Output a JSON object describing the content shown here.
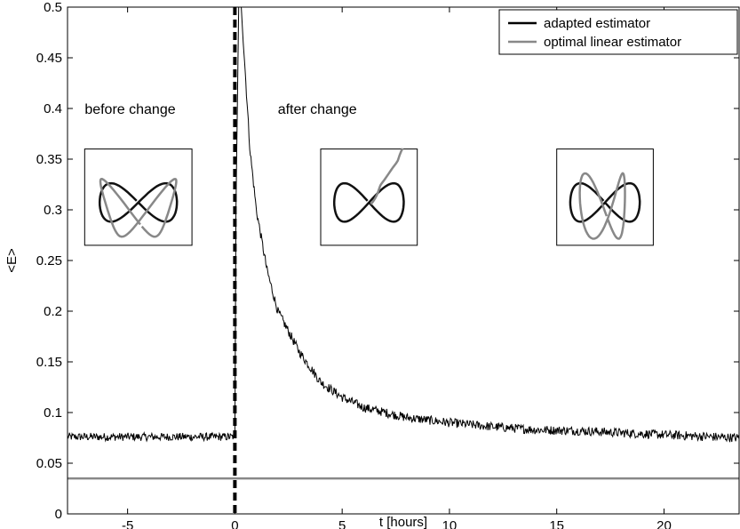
{
  "chart_data": {
    "type": "line",
    "title": "",
    "xlabel": "t [hours]",
    "ylabel": "<E>",
    "xlim": [
      -7.8,
      23.5
    ],
    "ylim": [
      0,
      0.5
    ],
    "xticks": [
      -5,
      0,
      5,
      10,
      15,
      20
    ],
    "yticks": [
      0,
      0.05,
      0.1,
      0.15,
      0.2,
      0.25,
      0.3,
      0.35,
      0.4,
      0.45,
      0.5
    ],
    "grid": false,
    "legend_position": "top-right",
    "series": [
      {
        "name": "adapted estimator",
        "color": "#000000",
        "style": "solid",
        "baseline_before_change": 0.076,
        "x": [
          0.3,
          0.5,
          0.7,
          1.0,
          1.5,
          2.0,
          2.5,
          3.0,
          4.0,
          5.0,
          6.0,
          7.0,
          8.0,
          10.0,
          12.0,
          14.0,
          16.0,
          18.0,
          20.0,
          23.5
        ],
        "y": [
          0.5,
          0.43,
          0.36,
          0.3,
          0.24,
          0.2,
          0.18,
          0.16,
          0.13,
          0.115,
          0.105,
          0.1,
          0.095,
          0.09,
          0.086,
          0.083,
          0.082,
          0.08,
          0.078,
          0.075
        ]
      },
      {
        "name": "optimal linear estimator",
        "color": "#888888",
        "style": "solid",
        "x": [
          -7.8,
          23.5
        ],
        "y": [
          0.035,
          0.035
        ]
      }
    ],
    "change_marker": {
      "x": 0,
      "style": "dashed",
      "color": "#000000"
    },
    "annotations": [
      {
        "text": "before change",
        "x": -7.0,
        "y": 0.4
      },
      {
        "text": "after change",
        "x": 2.0,
        "y": 0.4
      }
    ],
    "insets": [
      {
        "name": "inset-before",
        "x0": -7.0,
        "x1": -2.0,
        "y0": 0.265,
        "y1": 0.36,
        "gray_path": "deformed-loop"
      },
      {
        "name": "inset-after",
        "x0": 4.0,
        "x1": 8.5,
        "y0": 0.265,
        "y1": 0.36,
        "gray_path": "diverging"
      },
      {
        "name": "inset-adapted",
        "x0": 15.0,
        "x1": 19.5,
        "y0": 0.265,
        "y1": 0.36,
        "gray_path": "re-aligned"
      }
    ]
  }
}
